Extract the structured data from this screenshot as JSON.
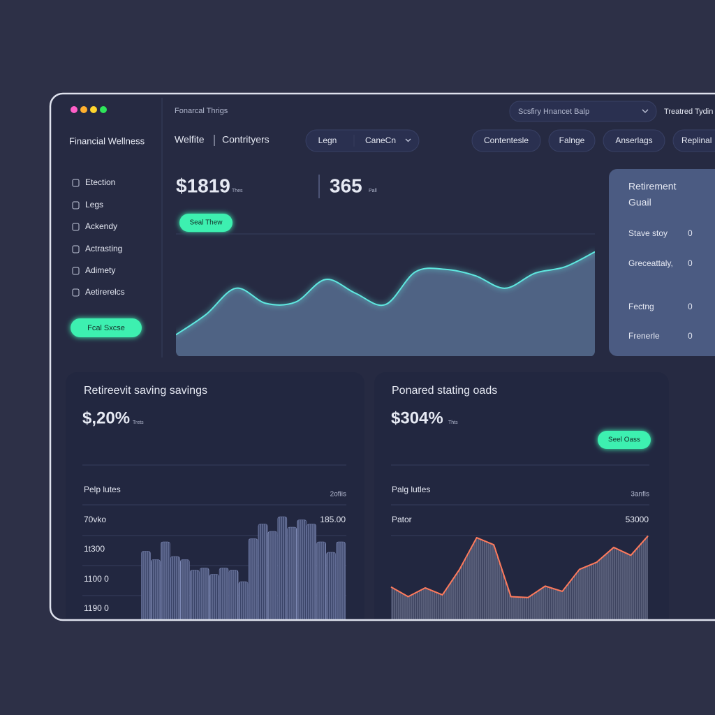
{
  "window": {
    "breadcrumb": "Fonarcal Thrigs",
    "dropdown": "Scsfiry Hnancet Balp",
    "user": "Treatred Tydin"
  },
  "sidebar": {
    "title": "Financial Wellness",
    "items": [
      "Etection",
      "Legs",
      "Ackendy",
      "Actrasting",
      "Adimety",
      "Aetirerelcs"
    ],
    "button": "Fcal Sxcse"
  },
  "tabs": {
    "primary": [
      "Welfite",
      "Contrityers"
    ],
    "pills": [
      "Legn",
      "CaneCn"
    ],
    "filters": [
      "Contentesle",
      "Falnge",
      "Anserlags",
      "Replinal"
    ]
  },
  "stats": [
    {
      "value": "$1819",
      "unit": "Thes"
    },
    {
      "value": "365",
      "unit": "Pall"
    }
  ],
  "stats_button": "Seal Thew",
  "trend_chart": {
    "type": "area",
    "values": [
      17,
      33,
      54,
      42,
      43,
      61,
      50,
      41,
      67,
      69,
      64,
      54,
      66,
      71,
      83
    ],
    "ylim": [
      0,
      100
    ]
  },
  "goal_card": {
    "title_lines": [
      "Retirement",
      "Guail"
    ],
    "rows": [
      {
        "label": "Stave stoy",
        "value": 0
      },
      {
        "label": "Greceattaly,",
        "value": 0
      },
      {
        "label": "Fectng",
        "value": 0
      },
      {
        "label": "Frenerle",
        "value": 0
      }
    ]
  },
  "savings_card": {
    "title": "Retireevit saving savings",
    "value": "$,20%",
    "unit": "Trets",
    "subtitle": "Pelp lutes",
    "legend": "2ofiis",
    "labels": [
      "70vko",
      "1t300",
      "1100 0",
      "1190 0"
    ],
    "right_label": "185.00",
    "chart": {
      "type": "bar",
      "values": [
        67,
        59,
        76,
        62,
        59,
        49,
        51,
        45,
        51,
        49,
        38,
        79,
        93,
        86,
        100,
        90,
        97,
        93,
        76,
        66,
        76
      ],
      "ylim": [
        0,
        100
      ]
    }
  },
  "goals_card": {
    "title": "Ponared stating oads",
    "value": "$304%",
    "unit": "Thts",
    "button": "Seel Oass",
    "subtitle": "Palg lutles",
    "legend": "3anfis",
    "label": "Pator",
    "right_label": "53000",
    "chart": {
      "type": "line",
      "values": [
        36,
        25,
        35,
        27,
        56,
        92,
        84,
        25,
        24,
        37,
        31,
        56,
        64,
        81,
        72,
        94
      ],
      "ylim": [
        0,
        100
      ]
    }
  }
}
